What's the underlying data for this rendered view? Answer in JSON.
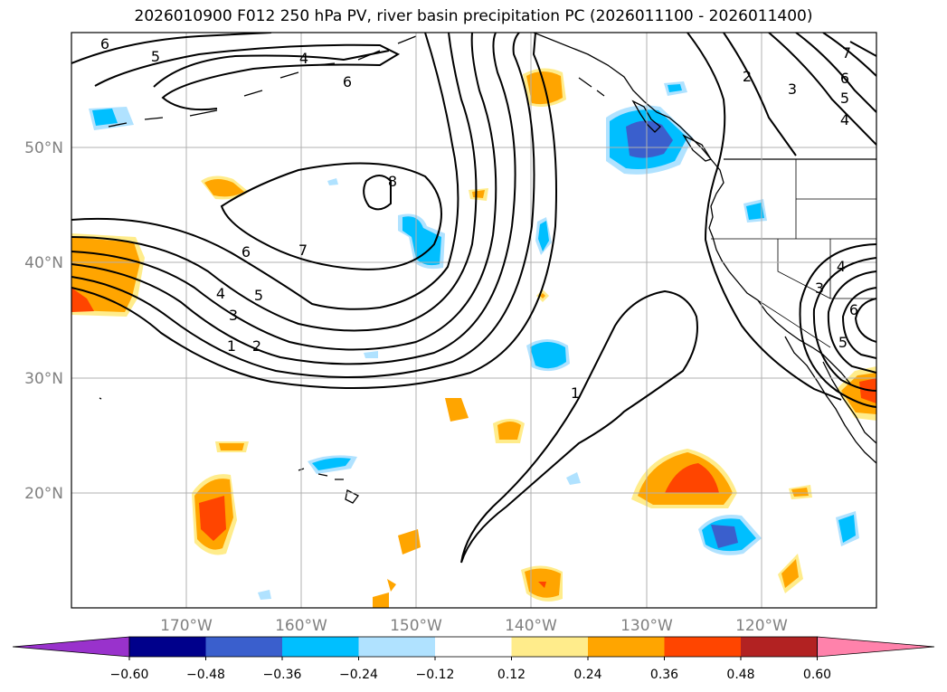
{
  "title": "2026010900 F012 250 hPa PV, river basin precipitation PC (2026011100 - 2026011400)",
  "map": {
    "lon_range": [
      -180,
      -110
    ],
    "lat_range": [
      10,
      60
    ],
    "lon_ticks": [
      {
        "value": -170,
        "label": "170°W"
      },
      {
        "value": -160,
        "label": "160°W"
      },
      {
        "value": -150,
        "label": "150°W"
      },
      {
        "value": -140,
        "label": "140°W"
      },
      {
        "value": -130,
        "label": "130°W"
      },
      {
        "value": -120,
        "label": "120°W"
      }
    ],
    "lat_ticks": [
      {
        "value": 50,
        "label": "50°N"
      },
      {
        "value": 40,
        "label": "40°N"
      },
      {
        "value": 30,
        "label": "30°N"
      },
      {
        "value": 20,
        "label": "20°N"
      }
    ],
    "contour_labels": [
      "1",
      "2",
      "3",
      "4",
      "5",
      "6",
      "7",
      "8"
    ]
  },
  "colorbar": {
    "colors": [
      "#9932cc",
      "#00008b",
      "#3a5fcd",
      "#00bfff",
      "#b0e2ff",
      "#ffffff",
      "#ffec8b",
      "#ffa500",
      "#ff4500",
      "#b22222",
      "#ff82ab"
    ],
    "labels": [
      "−0.60",
      "−0.48",
      "−0.36",
      "−0.24",
      "−0.12",
      "0.12",
      "0.24",
      "0.36",
      "0.48",
      "0.60"
    ]
  }
}
